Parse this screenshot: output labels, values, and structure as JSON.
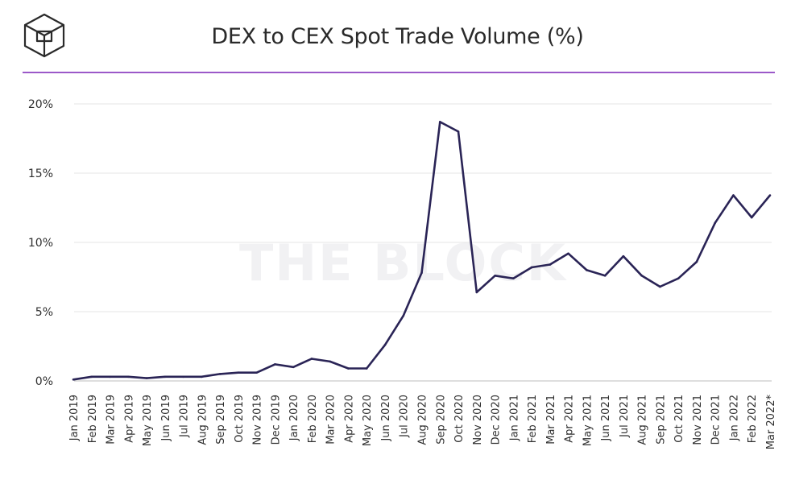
{
  "header": {
    "title": "DEX to CEX Spot Trade Volume (%)",
    "logo_icon": "the-block-cube-logo",
    "rule_color": "#9b59c9"
  },
  "watermark": "THE BLOCK",
  "chart_data": {
    "type": "line",
    "title": "DEX to CEX Spot Trade Volume (%)",
    "xlabel": "",
    "ylabel": "",
    "ylim": [
      0,
      20
    ],
    "yticks": [
      {
        "value": 0,
        "label": "0%"
      },
      {
        "value": 5,
        "label": "5%"
      },
      {
        "value": 10,
        "label": "10%"
      },
      {
        "value": 15,
        "label": "15%"
      },
      {
        "value": 20,
        "label": "20%"
      }
    ],
    "grid": true,
    "line_color": "#2a2456",
    "categories": [
      "Jan 2019",
      "Feb 2019",
      "Mar 2019",
      "Apr 2019",
      "May 2019",
      "Jun 2019",
      "Jul 2019",
      "Aug 2019",
      "Sep 2019",
      "Oct 2019",
      "Nov 2019",
      "Dec 2019",
      "Jan 2020",
      "Feb 2020",
      "Mar 2020",
      "Apr 2020",
      "May 2020",
      "Jun 2020",
      "Jul 2020",
      "Aug 2020",
      "Sep 2020",
      "Oct 2020",
      "Nov 2020",
      "Dec 2020",
      "Jan 2021",
      "Feb 2021",
      "Mar 2021",
      "Apr 2021",
      "May 2021",
      "Jun 2021",
      "Jul 2021",
      "Aug 2021",
      "Sep 2021",
      "Oct 2021",
      "Nov 2021",
      "Dec 2021",
      "Jan 2022",
      "Feb 2022",
      "Mar 2022*"
    ],
    "values": [
      0.1,
      0.3,
      0.3,
      0.3,
      0.2,
      0.3,
      0.3,
      0.3,
      0.5,
      0.6,
      0.6,
      1.2,
      1.0,
      1.6,
      1.4,
      0.9,
      0.9,
      2.6,
      4.7,
      7.8,
      18.7,
      18.0,
      6.4,
      7.6,
      7.4,
      8.2,
      8.4,
      9.2,
      8.0,
      7.6,
      9.0,
      7.6,
      6.8,
      7.4,
      8.6,
      11.4,
      13.4,
      11.8,
      13.4
    ]
  }
}
